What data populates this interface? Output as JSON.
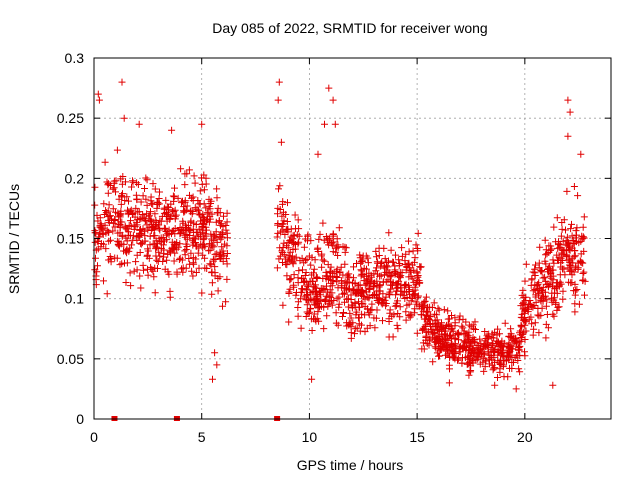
{
  "chart_data": {
    "type": "scatter",
    "title": "Day 085 of 2022, SRMTID for receiver wong",
    "xlabel": "GPS time / hours",
    "ylabel": "SRMTID / TECUs",
    "xlim": [
      0,
      24
    ],
    "ylim": [
      0,
      0.3
    ],
    "xticks": [
      0,
      5,
      10,
      15,
      20
    ],
    "xtick_labels": [
      "0",
      "5",
      "10",
      "15",
      "20"
    ],
    "yticks": [
      0,
      0.05,
      0.1,
      0.15,
      0.2,
      0.25,
      0.3
    ],
    "ytick_labels": [
      "0",
      "0.05",
      "0.1",
      "0.15",
      "0.2",
      "0.25",
      "0.3"
    ],
    "grid": true,
    "marker": "plus",
    "color": "#e00000",
    "series": [
      {
        "name": "SRMTID",
        "segments": [
          {
            "x_start": 0.0,
            "x_end": 6.2,
            "envelope": [
              [
                0.0,
                0.15,
                0.05
              ],
              [
                1.0,
                0.17,
                0.05
              ],
              [
                2.0,
                0.16,
                0.05
              ],
              [
                3.0,
                0.15,
                0.05
              ],
              [
                4.0,
                0.16,
                0.05
              ],
              [
                5.0,
                0.16,
                0.05
              ],
              [
                6.2,
                0.14,
                0.05
              ]
            ]
          },
          {
            "x_start": 8.5,
            "x_end": 15.2,
            "envelope": [
              [
                8.5,
                0.17,
                0.06
              ],
              [
                9.0,
                0.14,
                0.05
              ],
              [
                10.0,
                0.11,
                0.04
              ],
              [
                11.0,
                0.12,
                0.05
              ],
              [
                12.0,
                0.1,
                0.04
              ],
              [
                13.0,
                0.11,
                0.04
              ],
              [
                14.0,
                0.11,
                0.04
              ],
              [
                15.2,
                0.11,
                0.04
              ]
            ]
          },
          {
            "x_start": 15.2,
            "x_end": 19.8,
            "envelope": [
              [
                15.2,
                0.08,
                0.03
              ],
              [
                16.0,
                0.07,
                0.025
              ],
              [
                17.0,
                0.06,
                0.025
              ],
              [
                18.0,
                0.055,
                0.02
              ],
              [
                19.0,
                0.055,
                0.02
              ],
              [
                19.8,
                0.06,
                0.02
              ]
            ]
          },
          {
            "x_start": 19.8,
            "x_end": 22.8,
            "envelope": [
              [
                19.8,
                0.08,
                0.03
              ],
              [
                20.5,
                0.1,
                0.04
              ],
              [
                21.0,
                0.11,
                0.04
              ],
              [
                22.0,
                0.14,
                0.05
              ],
              [
                22.8,
                0.13,
                0.05
              ]
            ]
          }
        ],
        "outliers": [
          [
            0.2,
            0.27
          ],
          [
            0.25,
            0.265
          ],
          [
            1.3,
            0.28
          ],
          [
            1.4,
            0.25
          ],
          [
            2.1,
            0.245
          ],
          [
            3.6,
            0.24
          ],
          [
            5.0,
            0.245
          ],
          [
            8.6,
            0.28
          ],
          [
            8.55,
            0.265
          ],
          [
            8.7,
            0.23
          ],
          [
            10.9,
            0.275
          ],
          [
            11.1,
            0.265
          ],
          [
            11.2,
            0.245
          ],
          [
            10.7,
            0.245
          ],
          [
            10.4,
            0.22
          ],
          [
            22.0,
            0.265
          ],
          [
            22.1,
            0.255
          ],
          [
            22.0,
            0.235
          ],
          [
            22.6,
            0.22
          ],
          [
            5.6,
            0.055
          ],
          [
            5.7,
            0.045
          ],
          [
            5.5,
            0.033
          ],
          [
            10.1,
            0.033
          ],
          [
            16.5,
            0.03
          ],
          [
            18.6,
            0.028
          ],
          [
            19.6,
            0.025
          ],
          [
            21.3,
            0.028
          ]
        ],
        "count": 2000
      }
    ],
    "gap_markers_x": [
      0.95,
      3.85,
      8.5
    ]
  }
}
